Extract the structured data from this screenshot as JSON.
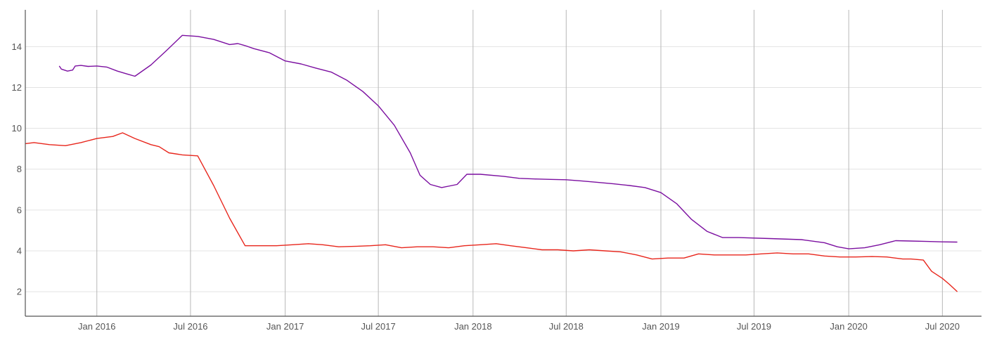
{
  "chart_data": {
    "type": "line",
    "title": "",
    "xlabel": "",
    "ylabel": "",
    "x_range": [
      "2015-08-15",
      "2020-09-15"
    ],
    "ylim": [
      0.8,
      15.8
    ],
    "grid": true,
    "x_ticks": [
      {
        "date": "2016-01-01",
        "label": "Jan 2016"
      },
      {
        "date": "2016-07-01",
        "label": "Jul 2016"
      },
      {
        "date": "2017-01-01",
        "label": "Jan 2017"
      },
      {
        "date": "2017-07-01",
        "label": "Jul 2017"
      },
      {
        "date": "2018-01-01",
        "label": "Jan 2018"
      },
      {
        "date": "2018-07-01",
        "label": "Jul 2018"
      },
      {
        "date": "2019-01-01",
        "label": "Jan 2019"
      },
      {
        "date": "2019-07-01",
        "label": "Jul 2019"
      },
      {
        "date": "2020-01-01",
        "label": "Jan 2020"
      },
      {
        "date": "2020-07-01",
        "label": "Jul 2020"
      }
    ],
    "y_ticks": [
      2,
      4,
      6,
      8,
      10,
      12,
      14
    ],
    "series": [
      {
        "color": "#7b0fa0",
        "points": [
          [
            "2015-10-20",
            13.05
          ],
          [
            "2015-10-24",
            12.9
          ],
          [
            "2015-11-05",
            12.8
          ],
          [
            "2015-11-15",
            12.85
          ],
          [
            "2015-11-20",
            13.05
          ],
          [
            "2015-12-01",
            13.08
          ],
          [
            "2015-12-15",
            13.03
          ],
          [
            "2016-01-01",
            13.05
          ],
          [
            "2016-01-20",
            13.0
          ],
          [
            "2016-02-10",
            12.8
          ],
          [
            "2016-03-01",
            12.65
          ],
          [
            "2016-03-15",
            12.55
          ],
          [
            "2016-04-15",
            13.1
          ],
          [
            "2016-05-15",
            13.8
          ],
          [
            "2016-06-15",
            14.55
          ],
          [
            "2016-07-15",
            14.5
          ],
          [
            "2016-08-15",
            14.35
          ],
          [
            "2016-09-15",
            14.1
          ],
          [
            "2016-10-01",
            14.15
          ],
          [
            "2016-10-15",
            14.05
          ],
          [
            "2016-11-01",
            13.9
          ],
          [
            "2016-12-01",
            13.7
          ],
          [
            "2017-01-01",
            13.3
          ],
          [
            "2017-02-01",
            13.15
          ],
          [
            "2017-03-01",
            12.95
          ],
          [
            "2017-04-01",
            12.75
          ],
          [
            "2017-05-01",
            12.35
          ],
          [
            "2017-06-01",
            11.8
          ],
          [
            "2017-07-01",
            11.1
          ],
          [
            "2017-08-01",
            10.15
          ],
          [
            "2017-09-01",
            8.8
          ],
          [
            "2017-09-20",
            7.7
          ],
          [
            "2017-10-10",
            7.25
          ],
          [
            "2017-11-01",
            7.1
          ],
          [
            "2017-12-01",
            7.25
          ],
          [
            "2017-12-20",
            7.75
          ],
          [
            "2018-01-15",
            7.75
          ],
          [
            "2018-03-01",
            7.65
          ],
          [
            "2018-04-01",
            7.55
          ],
          [
            "2018-05-01",
            7.52
          ],
          [
            "2018-06-01",
            7.5
          ],
          [
            "2018-07-01",
            7.48
          ],
          [
            "2018-08-01",
            7.42
          ],
          [
            "2018-09-01",
            7.35
          ],
          [
            "2018-10-01",
            7.28
          ],
          [
            "2018-11-01",
            7.2
          ],
          [
            "2018-12-01",
            7.1
          ],
          [
            "2019-01-01",
            6.85
          ],
          [
            "2019-02-01",
            6.3
          ],
          [
            "2019-03-01",
            5.55
          ],
          [
            "2019-04-01",
            4.95
          ],
          [
            "2019-05-01",
            4.65
          ],
          [
            "2019-06-01",
            4.65
          ],
          [
            "2019-08-01",
            4.6
          ],
          [
            "2019-10-01",
            4.55
          ],
          [
            "2019-11-15",
            4.4
          ],
          [
            "2019-12-10",
            4.2
          ],
          [
            "2020-01-01",
            4.1
          ],
          [
            "2020-02-01",
            4.15
          ],
          [
            "2020-03-01",
            4.3
          ],
          [
            "2020-04-01",
            4.5
          ],
          [
            "2020-05-01",
            4.48
          ],
          [
            "2020-06-01",
            4.46
          ],
          [
            "2020-07-01",
            4.44
          ],
          [
            "2020-07-30",
            4.43
          ]
        ]
      },
      {
        "color": "#e8261c",
        "points": [
          [
            "2015-08-15",
            9.25
          ],
          [
            "2015-09-01",
            9.3
          ],
          [
            "2015-10-01",
            9.2
          ],
          [
            "2015-11-01",
            9.15
          ],
          [
            "2015-12-01",
            9.3
          ],
          [
            "2016-01-01",
            9.5
          ],
          [
            "2016-02-01",
            9.6
          ],
          [
            "2016-02-20",
            9.78
          ],
          [
            "2016-03-15",
            9.5
          ],
          [
            "2016-04-15",
            9.2
          ],
          [
            "2016-05-01",
            9.1
          ],
          [
            "2016-05-20",
            8.8
          ],
          [
            "2016-06-15",
            8.7
          ],
          [
            "2016-07-15",
            8.65
          ],
          [
            "2016-08-15",
            7.2
          ],
          [
            "2016-09-15",
            5.6
          ],
          [
            "2016-10-15",
            4.25
          ],
          [
            "2016-11-15",
            4.25
          ],
          [
            "2016-12-15",
            4.25
          ],
          [
            "2017-01-15",
            4.3
          ],
          [
            "2017-02-15",
            4.35
          ],
          [
            "2017-03-15",
            4.3
          ],
          [
            "2017-04-15",
            4.2
          ],
          [
            "2017-05-15",
            4.22
          ],
          [
            "2017-06-15",
            4.25
          ],
          [
            "2017-07-15",
            4.3
          ],
          [
            "2017-08-15",
            4.15
          ],
          [
            "2017-09-15",
            4.2
          ],
          [
            "2017-10-15",
            4.2
          ],
          [
            "2017-11-15",
            4.15
          ],
          [
            "2017-12-15",
            4.25
          ],
          [
            "2018-01-15",
            4.3
          ],
          [
            "2018-02-15",
            4.35
          ],
          [
            "2018-03-15",
            4.25
          ],
          [
            "2018-04-15",
            4.15
          ],
          [
            "2018-05-15",
            4.05
          ],
          [
            "2018-06-15",
            4.05
          ],
          [
            "2018-07-15",
            4.0
          ],
          [
            "2018-08-15",
            4.05
          ],
          [
            "2018-09-15",
            4.0
          ],
          [
            "2018-10-15",
            3.95
          ],
          [
            "2018-11-15",
            3.8
          ],
          [
            "2018-12-15",
            3.6
          ],
          [
            "2019-01-15",
            3.65
          ],
          [
            "2019-02-15",
            3.65
          ],
          [
            "2019-03-15",
            3.85
          ],
          [
            "2019-04-15",
            3.8
          ],
          [
            "2019-05-15",
            3.8
          ],
          [
            "2019-06-15",
            3.8
          ],
          [
            "2019-07-15",
            3.85
          ],
          [
            "2019-08-15",
            3.9
          ],
          [
            "2019-09-15",
            3.85
          ],
          [
            "2019-10-15",
            3.85
          ],
          [
            "2019-11-15",
            3.75
          ],
          [
            "2019-12-15",
            3.7
          ],
          [
            "2020-01-15",
            3.7
          ],
          [
            "2020-02-15",
            3.72
          ],
          [
            "2020-03-15",
            3.7
          ],
          [
            "2020-04-15",
            3.6
          ],
          [
            "2020-05-01",
            3.6
          ],
          [
            "2020-05-25",
            3.55
          ],
          [
            "2020-06-10",
            3.0
          ],
          [
            "2020-07-01",
            2.65
          ],
          [
            "2020-07-15",
            2.35
          ],
          [
            "2020-07-30",
            2.0
          ]
        ]
      }
    ]
  }
}
